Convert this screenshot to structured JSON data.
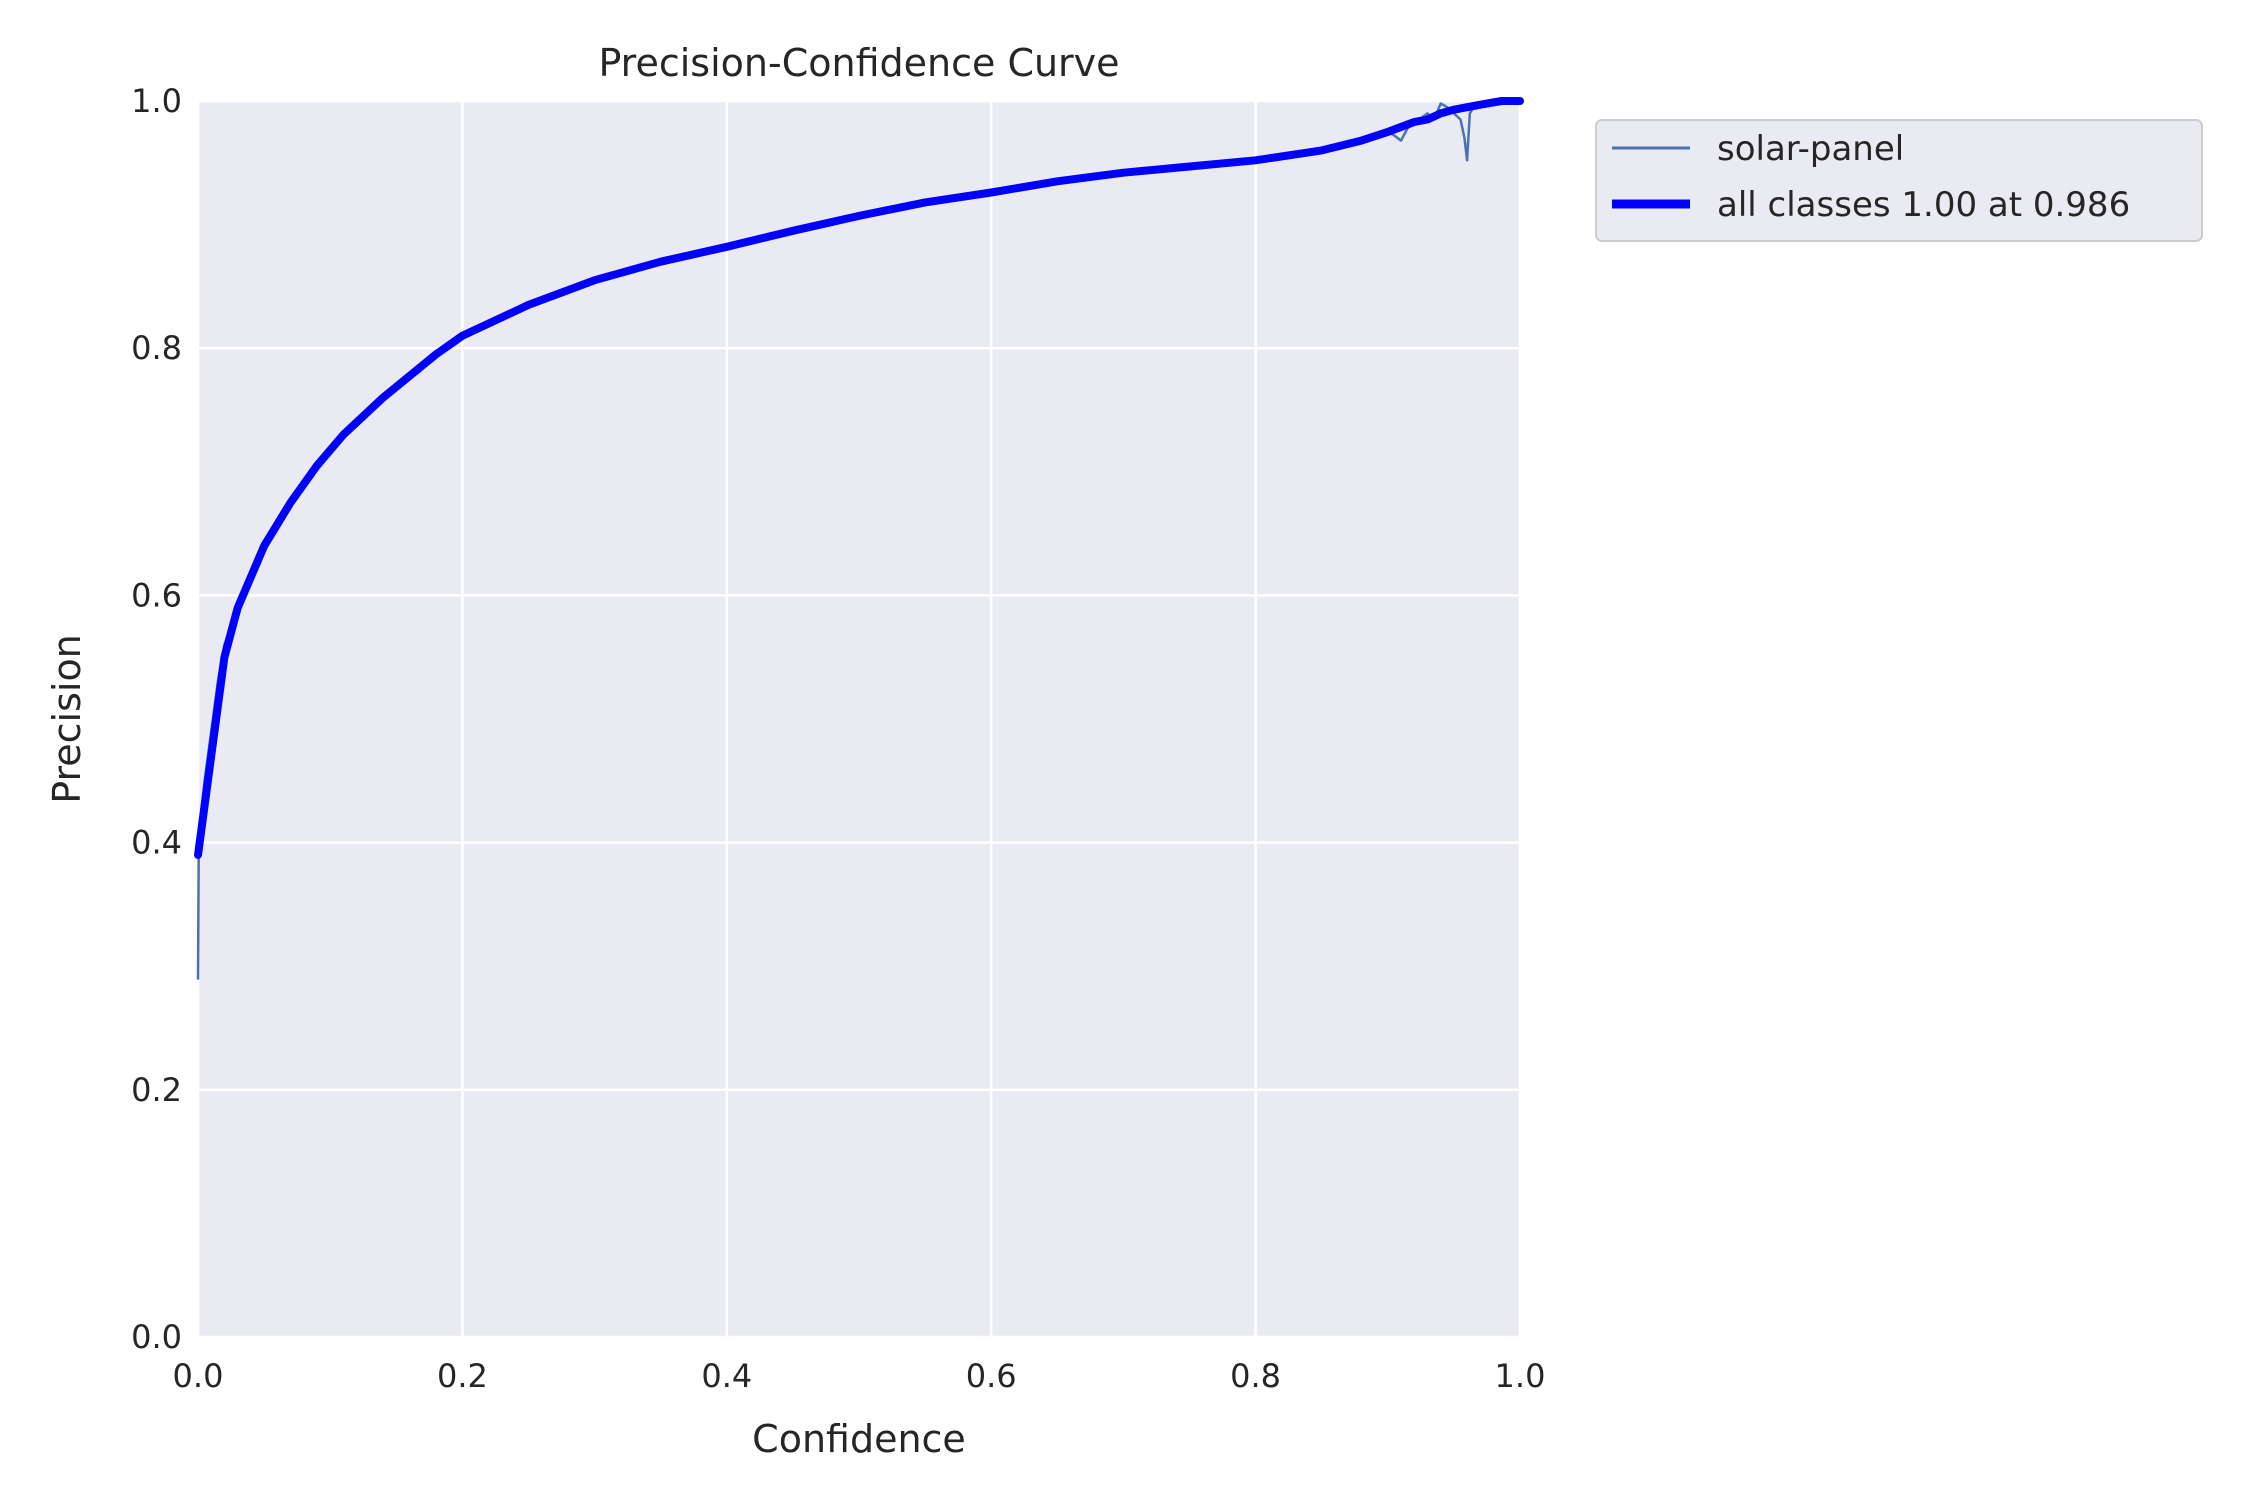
{
  "chart_data": {
    "type": "line",
    "title": "Precision-Confidence Curve",
    "xlabel": "Confidence",
    "ylabel": "Precision",
    "xlim": [
      0,
      1
    ],
    "ylim": [
      0,
      1
    ],
    "x_ticks": [
      "0.0",
      "0.2",
      "0.4",
      "0.6",
      "0.8",
      "1.0"
    ],
    "y_ticks": [
      "0.0",
      "0.2",
      "0.4",
      "0.6",
      "0.8",
      "1.0"
    ],
    "grid": true,
    "legend_position": "outside-top-right",
    "series": [
      {
        "name": "solar-panel",
        "color": "#4c72b0",
        "x": [
          0.0,
          0.0005,
          0.002,
          0.005,
          0.01,
          0.015,
          0.02,
          0.03,
          0.04,
          0.05,
          0.07,
          0.09,
          0.11,
          0.14,
          0.18,
          0.2,
          0.25,
          0.3,
          0.35,
          0.4,
          0.45,
          0.5,
          0.55,
          0.6,
          0.65,
          0.7,
          0.75,
          0.8,
          0.85,
          0.88,
          0.9,
          0.905,
          0.91,
          0.915,
          0.92,
          0.93,
          0.935,
          0.94,
          0.945,
          0.95,
          0.955,
          0.958,
          0.96,
          0.962,
          0.965,
          0.97,
          0.98,
          0.99,
          1.0
        ],
        "y": [
          0.29,
          0.39,
          0.42,
          0.45,
          0.49,
          0.53,
          0.56,
          0.59,
          0.62,
          0.64,
          0.675,
          0.705,
          0.73,
          0.76,
          0.795,
          0.81,
          0.835,
          0.855,
          0.87,
          0.882,
          0.895,
          0.907,
          0.918,
          0.926,
          0.935,
          0.942,
          0.947,
          0.952,
          0.96,
          0.968,
          0.975,
          0.972,
          0.968,
          0.978,
          0.982,
          0.99,
          0.985,
          0.998,
          0.995,
          0.99,
          0.985,
          0.97,
          0.952,
          0.99,
          0.995,
          0.997,
          0.998,
          1.0,
          1.0
        ]
      },
      {
        "name": "all classes 1.00 at 0.986",
        "color": "#0000ff",
        "x": [
          0.0,
          0.005,
          0.01,
          0.015,
          0.02,
          0.03,
          0.04,
          0.05,
          0.07,
          0.09,
          0.11,
          0.14,
          0.18,
          0.2,
          0.25,
          0.3,
          0.35,
          0.4,
          0.45,
          0.5,
          0.55,
          0.6,
          0.65,
          0.7,
          0.75,
          0.8,
          0.85,
          0.88,
          0.9,
          0.92,
          0.93,
          0.94,
          0.95,
          0.96,
          0.97,
          0.986,
          0.99,
          1.0
        ],
        "y": [
          0.39,
          0.43,
          0.47,
          0.51,
          0.55,
          0.59,
          0.615,
          0.64,
          0.675,
          0.705,
          0.73,
          0.76,
          0.795,
          0.81,
          0.835,
          0.855,
          0.87,
          0.882,
          0.895,
          0.907,
          0.918,
          0.926,
          0.935,
          0.942,
          0.947,
          0.952,
          0.96,
          0.968,
          0.975,
          0.983,
          0.985,
          0.99,
          0.993,
          0.995,
          0.997,
          1.0,
          1.0,
          1.0
        ]
      }
    ]
  }
}
